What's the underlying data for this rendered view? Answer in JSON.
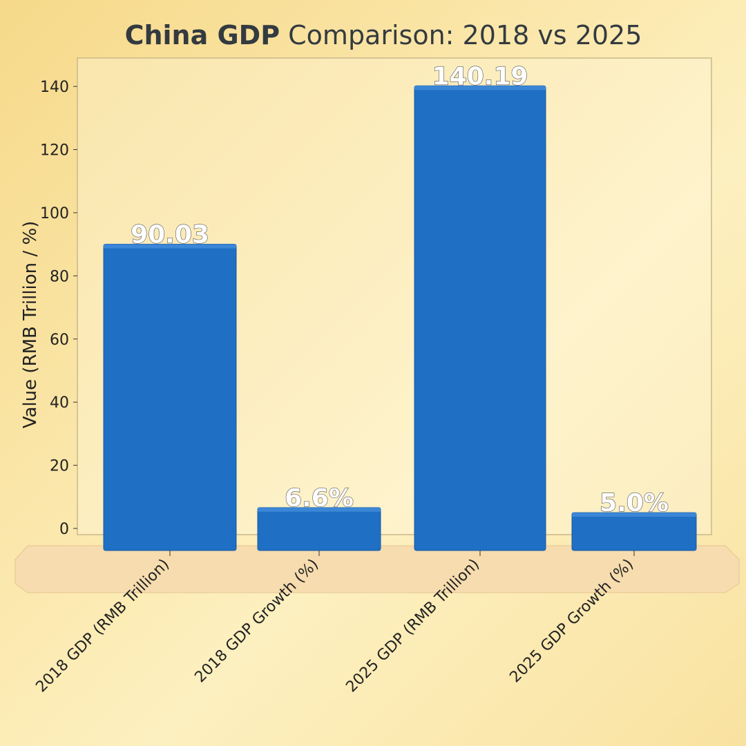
{
  "chart_data": {
    "type": "bar",
    "title_bold": "China GDP",
    "title_rest": " Comparison: 2018 vs 2025",
    "xlabel": "",
    "ylabel": "Value (RMB Trillion / %)",
    "categories": [
      "2018 GDP (RMB Trillion)",
      "2018 GDP Growth (%)",
      "2025 GDP (RMB Trillion)",
      "2025 GDP Growth (%)"
    ],
    "values": [
      90.03,
      6.6,
      140.19,
      5.0
    ],
    "data_labels": [
      "90.03",
      "6.6%",
      "140.19",
      "5.0%"
    ],
    "yticks": [
      0,
      20,
      40,
      60,
      80,
      100,
      120,
      140
    ],
    "ylim": [
      0,
      149
    ],
    "grid": false,
    "bar_color": "#1f6fc4"
  }
}
